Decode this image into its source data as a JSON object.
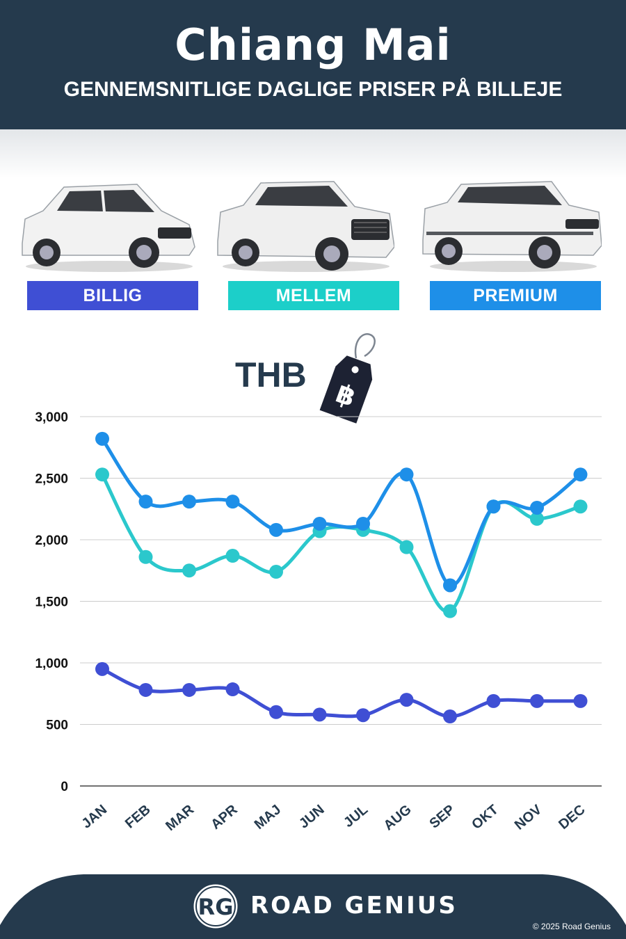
{
  "header": {
    "title": "Chiang Mai",
    "subtitle": "GENNEMSNITLIGE DAGLIGE PRISER PÅ BILLEJE"
  },
  "categories": [
    {
      "label": "BILLIG",
      "color": "#3f4fd4"
    },
    {
      "label": "MELLEM",
      "color": "#1ccfc9"
    },
    {
      "label": "PREMIUM",
      "color": "#1e8fe8"
    }
  ],
  "currency": {
    "label": "THB",
    "symbol": "฿"
  },
  "chart_data": {
    "type": "line",
    "categories": [
      "JAN",
      "FEB",
      "MAR",
      "APR",
      "MAJ",
      "JUN",
      "JUL",
      "AUG",
      "SEP",
      "OKT",
      "NOV",
      "DEC"
    ],
    "series": [
      {
        "name": "BILLIG",
        "color": "#3f4fd4",
        "values": [
          950,
          780,
          780,
          785,
          600,
          580,
          575,
          700,
          565,
          690,
          690,
          690
        ]
      },
      {
        "name": "MELLEM",
        "color": "#2bc8cc",
        "values": [
          2530,
          1860,
          1750,
          1870,
          1740,
          2070,
          2080,
          1940,
          1420,
          2270,
          2170,
          2270
        ]
      },
      {
        "name": "PREMIUM",
        "color": "#1e8fe8",
        "values": [
          2820,
          2310,
          2310,
          2310,
          2080,
          2130,
          2130,
          2530,
          1630,
          2270,
          2260,
          2530
        ]
      }
    ],
    "ylim": [
      0,
      3000
    ],
    "yticks": [
      0,
      500,
      1000,
      1500,
      2000,
      2500,
      3000
    ],
    "ytick_labels": [
      "0",
      "500",
      "1,000",
      "1,500",
      "2,000",
      "2,500",
      "3,000"
    ],
    "grid": true
  },
  "footer": {
    "logo_text": "RG",
    "brand": "ROAD GENIUS",
    "copyright": "© 2025 Road Genius"
  }
}
